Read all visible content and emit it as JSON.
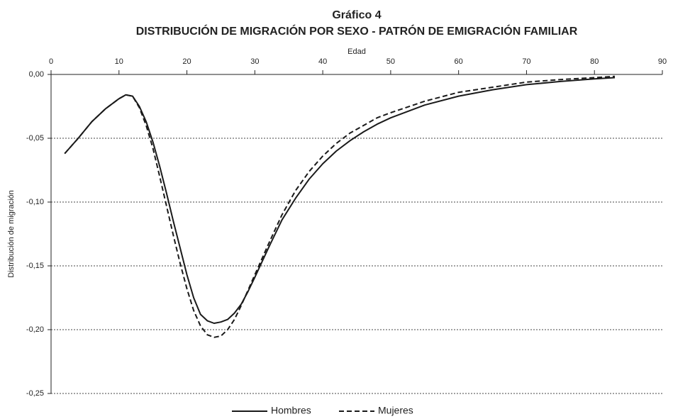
{
  "chart_data": {
    "type": "line",
    "title": "Gráfico 4",
    "subtitle": "DISTRIBUCIÓN DE MIGRACIÓN POR SEXO - PATRÓN DE EMIGRACIÓN FAMILIAR",
    "x_label": "Edad",
    "y_label": "Distribución de migración",
    "x": [
      2,
      4,
      6,
      8,
      10,
      11,
      12,
      13,
      14,
      15,
      16,
      17,
      18,
      19,
      20,
      21,
      22,
      23,
      24,
      25,
      26,
      27,
      28,
      29,
      30,
      32,
      34,
      36,
      38,
      40,
      42,
      44,
      46,
      48,
      50,
      55,
      60,
      65,
      70,
      75,
      80,
      83
    ],
    "series": [
      {
        "name": "Hombres",
        "color": "#1a1a1a",
        "style": "solid",
        "values": [
          -0.062,
          -0.05,
          -0.037,
          -0.027,
          -0.019,
          -0.016,
          -0.017,
          -0.025,
          -0.037,
          -0.053,
          -0.072,
          -0.093,
          -0.115,
          -0.136,
          -0.157,
          -0.175,
          -0.188,
          -0.193,
          -0.195,
          -0.194,
          -0.192,
          -0.187,
          -0.18,
          -0.17,
          -0.159,
          -0.136,
          -0.114,
          -0.097,
          -0.082,
          -0.07,
          -0.06,
          -0.052,
          -0.045,
          -0.039,
          -0.034,
          -0.024,
          -0.017,
          -0.012,
          -0.008,
          -0.0055,
          -0.0035,
          -0.0025
        ]
      },
      {
        "name": "Mujeres",
        "color": "#1a1a1a",
        "style": "dashed",
        "values": [
          -0.062,
          -0.05,
          -0.037,
          -0.027,
          -0.019,
          -0.016,
          -0.017,
          -0.026,
          -0.04,
          -0.058,
          -0.08,
          -0.103,
          -0.126,
          -0.148,
          -0.168,
          -0.185,
          -0.197,
          -0.204,
          -0.206,
          -0.205,
          -0.2,
          -0.192,
          -0.181,
          -0.169,
          -0.157,
          -0.133,
          -0.11,
          -0.091,
          -0.076,
          -0.064,
          -0.054,
          -0.046,
          -0.04,
          -0.034,
          -0.03,
          -0.021,
          -0.014,
          -0.01,
          -0.006,
          -0.004,
          -0.0025,
          -0.0015
        ]
      }
    ],
    "xlim": [
      0,
      90
    ],
    "xticks": [
      0,
      10,
      20,
      30,
      40,
      50,
      60,
      70,
      80,
      90
    ],
    "ylim": [
      -0.25,
      0
    ],
    "yticks": [
      {
        "value": 0,
        "label": "0,00"
      },
      {
        "value": -0.05,
        "label": "-0,05"
      },
      {
        "value": -0.1,
        "label": "-0,10"
      },
      {
        "value": -0.15,
        "label": "-0,15"
      },
      {
        "value": -0.2,
        "label": "-0,20"
      },
      {
        "value": -0.25,
        "label": "-0,25"
      }
    ],
    "grid": true,
    "legend": "bottom"
  }
}
